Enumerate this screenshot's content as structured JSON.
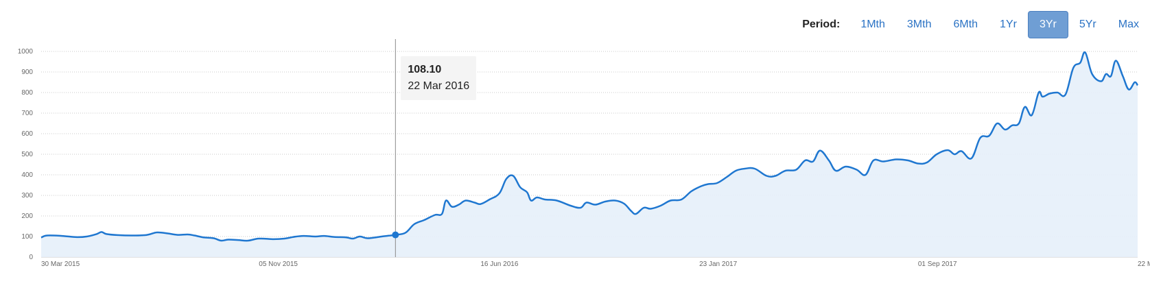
{
  "period": {
    "label": "Period:",
    "options": [
      "1Mth",
      "3Mth",
      "6Mth",
      "1Yr",
      "3Yr",
      "5Yr",
      "Max"
    ],
    "selected": "3Yr"
  },
  "tooltip": {
    "value": "108.10",
    "date": "22 Mar 2016"
  },
  "colors": {
    "line": "#1f77d0",
    "fill": "#e6eff9",
    "grid": "#c8c8c8",
    "active_button": "#6f9ed4",
    "link": "#2a72c4"
  },
  "chart_data": {
    "type": "area",
    "title": "",
    "xlabel": "",
    "ylabel": "",
    "ylim": [
      0,
      1000
    ],
    "y_ticks": [
      0,
      100,
      200,
      300,
      400,
      500,
      600,
      700,
      800,
      900,
      1000
    ],
    "x_tick_labels": [
      "30 Mar 2015",
      "05 Nov 2015",
      "16 Jun 2016",
      "23 Jan 2017",
      "01 Sep 2017",
      "22 M"
    ],
    "x_tick_dates": [
      "2015-03-30",
      "2015-11-05",
      "2016-06-16",
      "2017-01-23",
      "2017-09-01",
      "2018-04-11"
    ],
    "xlim": [
      "2015-03-30",
      "2018-04-11"
    ],
    "grid": true,
    "legend": "none",
    "highlight": {
      "date": "2016-03-22",
      "value": 108.1
    },
    "series": [
      {
        "points": [
          [
            "2015-03-30",
            95
          ],
          [
            "2015-04-05",
            105
          ],
          [
            "2015-04-20",
            103
          ],
          [
            "2015-05-05",
            97
          ],
          [
            "2015-05-15",
            100
          ],
          [
            "2015-05-25",
            112
          ],
          [
            "2015-05-30",
            122
          ],
          [
            "2015-06-04",
            112
          ],
          [
            "2015-06-15",
            107
          ],
          [
            "2015-07-01",
            105
          ],
          [
            "2015-07-15",
            108
          ],
          [
            "2015-07-25",
            120
          ],
          [
            "2015-08-05",
            115
          ],
          [
            "2015-08-15",
            108
          ],
          [
            "2015-08-25",
            110
          ],
          [
            "2015-09-01",
            105
          ],
          [
            "2015-09-10",
            96
          ],
          [
            "2015-09-20",
            92
          ],
          [
            "2015-09-28",
            80
          ],
          [
            "2015-10-05",
            85
          ],
          [
            "2015-10-15",
            83
          ],
          [
            "2015-10-25",
            80
          ],
          [
            "2015-11-05",
            90
          ],
          [
            "2015-11-20",
            87
          ],
          [
            "2015-12-01",
            90
          ],
          [
            "2015-12-10",
            98
          ],
          [
            "2015-12-20",
            103
          ],
          [
            "2016-01-01",
            100
          ],
          [
            "2016-01-10",
            103
          ],
          [
            "2016-01-20",
            98
          ],
          [
            "2016-02-01",
            96
          ],
          [
            "2016-02-08",
            90
          ],
          [
            "2016-02-15",
            100
          ],
          [
            "2016-02-22",
            92
          ],
          [
            "2016-03-01",
            95
          ],
          [
            "2016-03-08",
            100
          ],
          [
            "2016-03-15",
            104
          ],
          [
            "2016-03-22",
            108.1
          ],
          [
            "2016-04-01",
            118
          ],
          [
            "2016-04-10",
            160
          ],
          [
            "2016-04-20",
            180
          ],
          [
            "2016-05-01",
            205
          ],
          [
            "2016-05-08",
            210
          ],
          [
            "2016-05-12",
            275
          ],
          [
            "2016-05-18",
            245
          ],
          [
            "2016-05-25",
            255
          ],
          [
            "2016-06-01",
            275
          ],
          [
            "2016-06-10",
            265
          ],
          [
            "2016-06-16",
            258
          ],
          [
            "2016-06-25",
            280
          ],
          [
            "2016-07-05",
            310
          ],
          [
            "2016-07-12",
            380
          ],
          [
            "2016-07-19",
            395
          ],
          [
            "2016-07-26",
            340
          ],
          [
            "2016-08-02",
            315
          ],
          [
            "2016-08-06",
            275
          ],
          [
            "2016-08-12",
            290
          ],
          [
            "2016-08-20",
            280
          ],
          [
            "2016-09-01",
            275
          ],
          [
            "2016-09-15",
            250
          ],
          [
            "2016-09-25",
            240
          ],
          [
            "2016-10-01",
            265
          ],
          [
            "2016-10-10",
            255
          ],
          [
            "2016-10-20",
            270
          ],
          [
            "2016-10-30",
            275
          ],
          [
            "2016-11-08",
            260
          ],
          [
            "2016-11-15",
            225
          ],
          [
            "2016-11-20",
            210
          ],
          [
            "2016-11-28",
            240
          ],
          [
            "2016-12-05",
            235
          ],
          [
            "2016-12-15",
            250
          ],
          [
            "2016-12-25",
            275
          ],
          [
            "2017-01-05",
            280
          ],
          [
            "2017-01-15",
            320
          ],
          [
            "2017-01-25",
            345
          ],
          [
            "2017-02-01",
            355
          ],
          [
            "2017-02-10",
            360
          ],
          [
            "2017-02-20",
            390
          ],
          [
            "2017-03-01",
            420
          ],
          [
            "2017-03-10",
            430
          ],
          [
            "2017-03-20",
            430
          ],
          [
            "2017-04-01",
            395
          ],
          [
            "2017-04-10",
            395
          ],
          [
            "2017-04-20",
            420
          ],
          [
            "2017-05-01",
            425
          ],
          [
            "2017-05-10",
            470
          ],
          [
            "2017-05-18",
            465
          ],
          [
            "2017-05-25",
            518
          ],
          [
            "2017-06-03",
            470
          ],
          [
            "2017-06-10",
            420
          ],
          [
            "2017-06-20",
            440
          ],
          [
            "2017-07-01",
            425
          ],
          [
            "2017-07-10",
            400
          ],
          [
            "2017-07-18",
            470
          ],
          [
            "2017-07-28",
            465
          ],
          [
            "2017-08-10",
            475
          ],
          [
            "2017-08-22",
            470
          ],
          [
            "2017-09-01",
            455
          ],
          [
            "2017-09-10",
            460
          ],
          [
            "2017-09-20",
            500
          ],
          [
            "2017-10-01",
            520
          ],
          [
            "2017-10-08",
            500
          ],
          [
            "2017-10-15",
            515
          ],
          [
            "2017-10-25",
            480
          ],
          [
            "2017-11-03",
            580
          ],
          [
            "2017-11-12",
            590
          ],
          [
            "2017-11-20",
            650
          ],
          [
            "2017-11-28",
            620
          ],
          [
            "2017-12-05",
            640
          ],
          [
            "2017-12-12",
            650
          ],
          [
            "2017-12-18",
            730
          ],
          [
            "2017-12-25",
            690
          ],
          [
            "2018-01-01",
            800
          ],
          [
            "2018-01-05",
            780
          ],
          [
            "2018-01-12",
            795
          ],
          [
            "2018-01-20",
            800
          ],
          [
            "2018-01-28",
            790
          ],
          [
            "2018-02-05",
            920
          ],
          [
            "2018-02-12",
            945
          ],
          [
            "2018-02-17",
            995
          ],
          [
            "2018-02-24",
            890
          ],
          [
            "2018-03-05",
            855
          ],
          [
            "2018-03-10",
            890
          ],
          [
            "2018-03-15",
            880
          ],
          [
            "2018-03-20",
            955
          ],
          [
            "2018-03-27",
            880
          ],
          [
            "2018-04-02",
            815
          ],
          [
            "2018-04-08",
            850
          ],
          [
            "2018-04-11",
            835
          ]
        ]
      }
    ]
  }
}
